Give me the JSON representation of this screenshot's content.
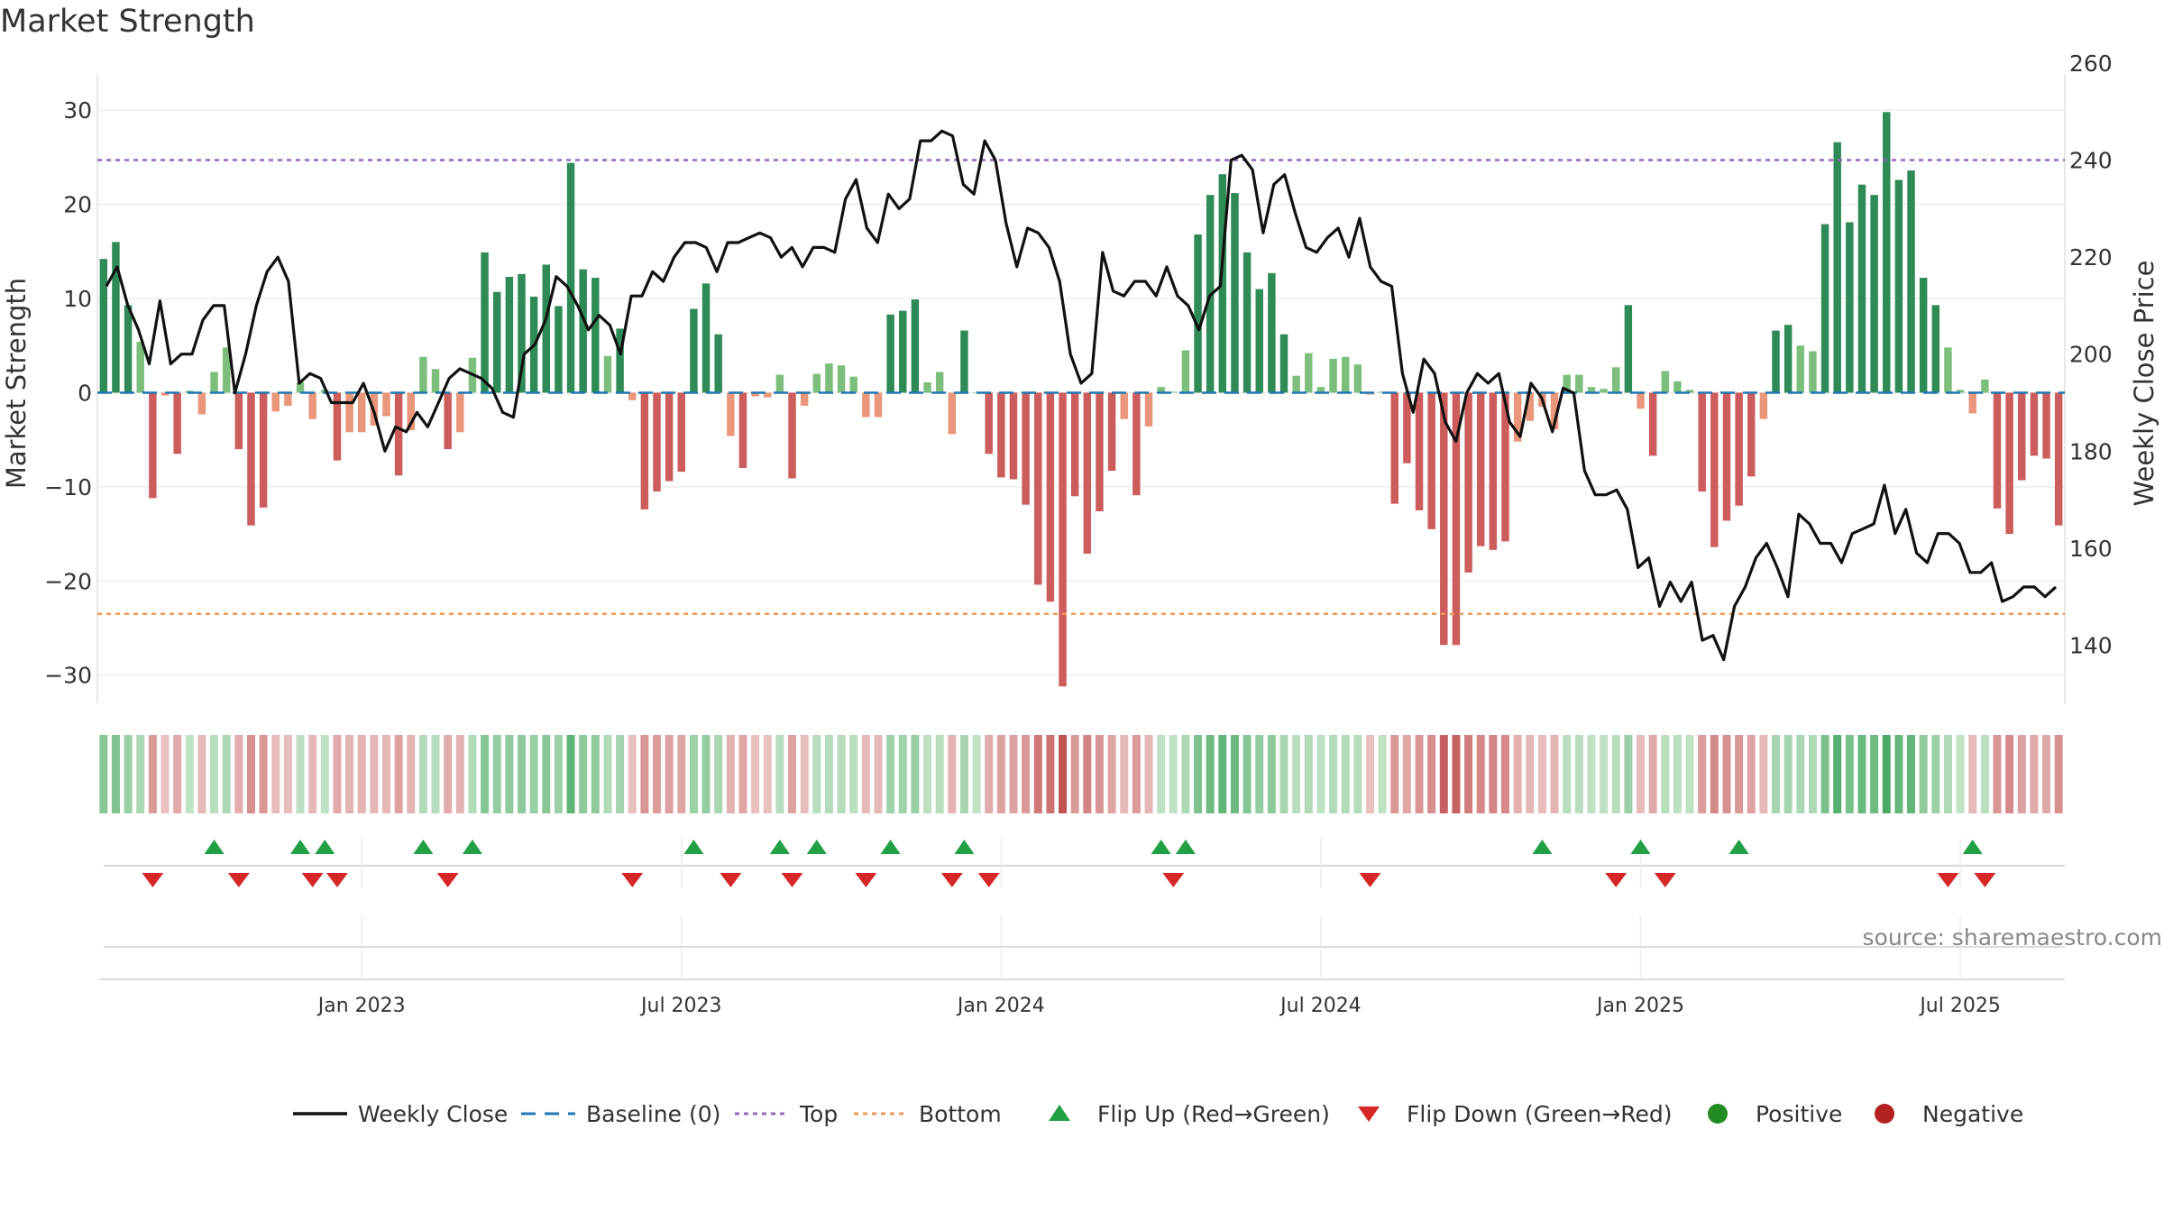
{
  "chart_data": {
    "type": "bar",
    "title": "Market Strength",
    "ylabel": "Market Strength",
    "y2label": "Weekly Close Price",
    "ylim": [
      -33,
      35
    ],
    "y2lim": [
      128,
      260
    ],
    "yticks": [
      30,
      20,
      10,
      0,
      -10,
      -20,
      -30
    ],
    "yticklabels": [
      "30",
      "20",
      "10",
      "0",
      "−10",
      "−20",
      "−30"
    ],
    "y2ticks": [
      260,
      240,
      220,
      200,
      180,
      160,
      140
    ],
    "y2ticklabels": [
      "260",
      "240",
      "220",
      "200",
      "180",
      "160",
      "140"
    ],
    "xticks": [
      {
        "label": "Jan 2023",
        "index": 21
      },
      {
        "label": "Jul 2023",
        "index": 47
      },
      {
        "label": "Jan 2024",
        "index": 73
      },
      {
        "label": "Jul 2024",
        "index": 99
      },
      {
        "label": "Jan 2025",
        "index": 125
      },
      {
        "label": "Jul 2025",
        "index": 151
      }
    ],
    "top_level": 24.7,
    "bottom_level": -23.5,
    "source_note": "source: sharemaestro.com",
    "legend": [
      {
        "label": "Weekly Close",
        "kind": "line",
        "color": "#111111"
      },
      {
        "label": "Baseline (0)",
        "kind": "dash",
        "color": "#1f77b4"
      },
      {
        "label": "Top",
        "kind": "dot",
        "color": "#9467bd"
      },
      {
        "label": "Bottom",
        "kind": "dot",
        "color": "#ee9955"
      },
      {
        "label": "Flip Up (Red→Green)",
        "kind": "up",
        "color": "#22a045"
      },
      {
        "label": "Flip Down (Green→Red)",
        "kind": "down",
        "color": "#d62728"
      },
      {
        "label": "Positive",
        "kind": "circle",
        "color": "#228b22"
      },
      {
        "label": "Negative",
        "kind": "circle",
        "color": "#b22222"
      }
    ],
    "colors": {
      "pos_strong": "#2e8b57",
      "pos_weak": "#7cbf7c",
      "neg_strong": "#cd5c5c",
      "neg_weak": "#e9967a",
      "close": "#111111",
      "top": "#9467bd",
      "bottom": "#ee9955",
      "baseline": "#1f77b4"
    },
    "strength": [
      14.2,
      16.0,
      9.3,
      5.4,
      -11.2,
      -0.3,
      -6.5,
      0.2,
      -2.3,
      2.2,
      4.8,
      -6.0,
      -14.1,
      -12.2,
      -2.0,
      -1.4,
      1.1,
      -2.8,
      0.3,
      -7.2,
      -4.2,
      -4.2,
      -3.5,
      -2.5,
      -8.8,
      -4.0,
      3.8,
      2.5,
      -6.0,
      -4.2,
      3.7,
      14.9,
      10.7,
      12.3,
      12.6,
      10.2,
      13.6,
      9.2,
      24.4,
      13.1,
      12.2,
      3.9,
      6.8,
      -0.8,
      -12.4,
      -10.5,
      -9.4,
      -8.4,
      8.9,
      11.6,
      6.2,
      -4.6,
      -8.0,
      -0.4,
      -0.5,
      1.9,
      -9.1,
      -1.4,
      2.0,
      3.1,
      2.9,
      1.7,
      -2.6,
      -2.6,
      8.3,
      8.7,
      9.9,
      1.1,
      2.2,
      -4.4,
      6.6,
      0.0,
      -6.5,
      -9.0,
      -9.2,
      -11.9,
      -20.4,
      -22.2,
      -31.2,
      -11.0,
      -17.1,
      -12.6,
      -8.3,
      -2.8,
      -10.9,
      -3.6,
      0.6,
      0.1,
      4.5,
      16.8,
      21.0,
      23.2,
      21.2,
      14.9,
      11.0,
      12.7,
      6.2,
      1.8,
      4.2,
      0.6,
      3.6,
      3.8,
      3.0,
      -0.2,
      0.1,
      -11.8,
      -7.5,
      -12.5,
      -14.5,
      -26.8,
      -26.8,
      -19.1,
      -16.3,
      -16.7,
      -15.8,
      -5.2,
      -3.0,
      -1.5,
      -3.9,
      1.9,
      1.9,
      0.6,
      0.4,
      2.7,
      9.3,
      -1.7,
      -6.7,
      2.3,
      1.2,
      0.3,
      -10.5,
      -16.4,
      -13.6,
      -12.0,
      -8.9,
      -2.8,
      6.6,
      7.2,
      5.0,
      4.4,
      17.9,
      26.6,
      18.1,
      22.1,
      21.0,
      29.8,
      22.6,
      23.6,
      12.2,
      9.3,
      4.8,
      0.3,
      -2.2,
      1.4,
      -12.3,
      -15.0,
      -9.3,
      -6.7,
      -7.0,
      -14.1
    ],
    "close": [
      214,
      218,
      210,
      205,
      198,
      211,
      198,
      200,
      200,
      207,
      210,
      210,
      192,
      200,
      210,
      217,
      220,
      215,
      194,
      196,
      195,
      190,
      190,
      190,
      194,
      188,
      180,
      185,
      184,
      188,
      185,
      190,
      195,
      197,
      196,
      195,
      193,
      188,
      187,
      200,
      202,
      207,
      216,
      214,
      210,
      205,
      208,
      206,
      200,
      212,
      212,
      217,
      215,
      220,
      223,
      223,
      222,
      217,
      223,
      223,
      224,
      225,
      224,
      220,
      222,
      218,
      222,
      222,
      221,
      232,
      236,
      226,
      223,
      233,
      230,
      232,
      244,
      244,
      246,
      245,
      235,
      233,
      244,
      240,
      227,
      218,
      226,
      225,
      222,
      215,
      200,
      194,
      196,
      221,
      213,
      212,
      215,
      215,
      212,
      218,
      212,
      210,
      205,
      212,
      214,
      240,
      241,
      238,
      225,
      235,
      237,
      229,
      222,
      221,
      224,
      226,
      220,
      228,
      218,
      215,
      214,
      196,
      188,
      199,
      196,
      186,
      182,
      192,
      196,
      194,
      196,
      186,
      183,
      194,
      191,
      184,
      193,
      192,
      176,
      171,
      171,
      172,
      168,
      156,
      158,
      148,
      153,
      149,
      153,
      141,
      142,
      137,
      148,
      152,
      158,
      161,
      156,
      150,
      167,
      165,
      161,
      161,
      157,
      163,
      164,
      165,
      173,
      163,
      168,
      159,
      157,
      163,
      163,
      161,
      155,
      155,
      157,
      149,
      150,
      152,
      152,
      150,
      152
    ],
    "flip_up": [
      9,
      16,
      18,
      26,
      30,
      48,
      55,
      58,
      64,
      70,
      86,
      88,
      117,
      125,
      133,
      152
    ],
    "flip_down": [
      4,
      11,
      17,
      19,
      28,
      43,
      51,
      56,
      62,
      69,
      72,
      87,
      103,
      123,
      127,
      150,
      153
    ]
  }
}
